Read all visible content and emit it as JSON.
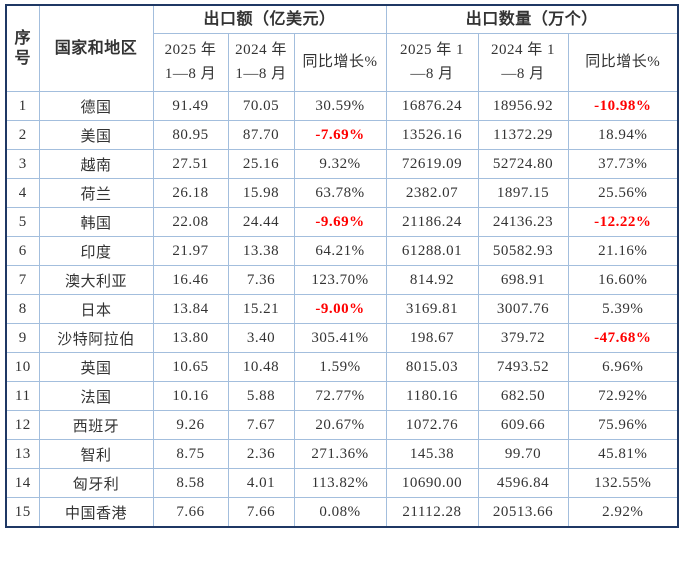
{
  "colors": {
    "border_outer": "#1f3864",
    "border_inner": "#a3bedd",
    "text": "#333333",
    "negative": "#ff0000"
  },
  "table": {
    "header": {
      "serial": "序\n号",
      "country": "国家和地区",
      "group_export_value": "出口额（亿美元）",
      "group_export_qty": "出口数量（万个）",
      "sub_value_2025": "2025 年\n1—8 月",
      "sub_value_2024": "2024 年\n1—8 月",
      "sub_value_growth": "同比增长%",
      "sub_qty_2025": "2025 年 1\n—8 月",
      "sub_qty_2024": "2024 年 1\n—8 月",
      "sub_qty_growth": "同比增长%"
    },
    "rows": [
      {
        "no": "1",
        "country": "德国",
        "v2025": "91.49",
        "v2024": "70.05",
        "vgrowth": "30.59%",
        "q2025": "16876.24",
        "q2024": "18956.92",
        "qgrowth": "-10.98%"
      },
      {
        "no": "2",
        "country": "美国",
        "v2025": "80.95",
        "v2024": "87.70",
        "vgrowth": "-7.69%",
        "q2025": "13526.16",
        "q2024": "11372.29",
        "qgrowth": "18.94%"
      },
      {
        "no": "3",
        "country": "越南",
        "v2025": "27.51",
        "v2024": "25.16",
        "vgrowth": "9.32%",
        "q2025": "72619.09",
        "q2024": "52724.80",
        "qgrowth": "37.73%"
      },
      {
        "no": "4",
        "country": "荷兰",
        "v2025": "26.18",
        "v2024": "15.98",
        "vgrowth": "63.78%",
        "q2025": "2382.07",
        "q2024": "1897.15",
        "qgrowth": "25.56%"
      },
      {
        "no": "5",
        "country": "韩国",
        "v2025": "22.08",
        "v2024": "24.44",
        "vgrowth": "-9.69%",
        "q2025": "21186.24",
        "q2024": "24136.23",
        "qgrowth": "-12.22%"
      },
      {
        "no": "6",
        "country": "印度",
        "v2025": "21.97",
        "v2024": "13.38",
        "vgrowth": "64.21%",
        "q2025": "61288.01",
        "q2024": "50582.93",
        "qgrowth": "21.16%"
      },
      {
        "no": "7",
        "country": "澳大利亚",
        "v2025": "16.46",
        "v2024": "7.36",
        "vgrowth": "123.70%",
        "q2025": "814.92",
        "q2024": "698.91",
        "qgrowth": "16.60%"
      },
      {
        "no": "8",
        "country": "日本",
        "v2025": "13.84",
        "v2024": "15.21",
        "vgrowth": "-9.00%",
        "q2025": "3169.81",
        "q2024": "3007.76",
        "qgrowth": "5.39%"
      },
      {
        "no": "9",
        "country": "沙特阿拉伯",
        "v2025": "13.80",
        "v2024": "3.40",
        "vgrowth": "305.41%",
        "q2025": "198.67",
        "q2024": "379.72",
        "qgrowth": "-47.68%"
      },
      {
        "no": "10",
        "country": "英国",
        "v2025": "10.65",
        "v2024": "10.48",
        "vgrowth": "1.59%",
        "q2025": "8015.03",
        "q2024": "7493.52",
        "qgrowth": "6.96%"
      },
      {
        "no": "11",
        "country": "法国",
        "v2025": "10.16",
        "v2024": "5.88",
        "vgrowth": "72.77%",
        "q2025": "1180.16",
        "q2024": "682.50",
        "qgrowth": "72.92%"
      },
      {
        "no": "12",
        "country": "西班牙",
        "v2025": "9.26",
        "v2024": "7.67",
        "vgrowth": "20.67%",
        "q2025": "1072.76",
        "q2024": "609.66",
        "qgrowth": "75.96%"
      },
      {
        "no": "13",
        "country": "智利",
        "v2025": "8.75",
        "v2024": "2.36",
        "vgrowth": "271.36%",
        "q2025": "145.38",
        "q2024": "99.70",
        "qgrowth": "45.81%"
      },
      {
        "no": "14",
        "country": "匈牙利",
        "v2025": "8.58",
        "v2024": "4.01",
        "vgrowth": "113.82%",
        "q2025": "10690.00",
        "q2024": "4596.84",
        "qgrowth": "132.55%"
      },
      {
        "no": "15",
        "country": "中国香港",
        "v2025": "7.66",
        "v2024": "7.66",
        "vgrowth": "0.08%",
        "q2025": "21112.28",
        "q2024": "20513.66",
        "qgrowth": "2.92%"
      }
    ]
  }
}
